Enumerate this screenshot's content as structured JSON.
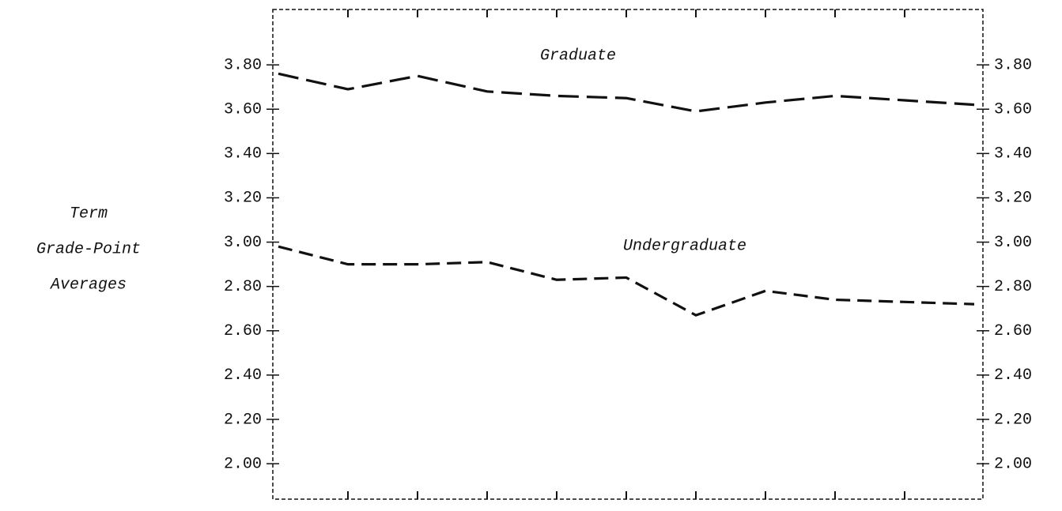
{
  "chart_data": {
    "type": "line",
    "ylabel": [
      "Term",
      "Grade-Point",
      "Averages"
    ],
    "categories": [
      null,
      null,
      null,
      null,
      null,
      null,
      null,
      null,
      null,
      null,
      null
    ],
    "series": [
      {
        "name": "Graduate",
        "color": "#111111",
        "values": [
          3.76,
          3.69,
          3.75,
          3.68,
          3.66,
          3.65,
          3.59,
          3.63,
          3.66,
          3.64,
          3.62
        ]
      },
      {
        "name": "Undergraduate",
        "color": "#111111",
        "values": [
          2.98,
          2.9,
          2.9,
          2.91,
          2.83,
          2.84,
          2.67,
          2.78,
          2.74,
          2.73,
          2.72
        ]
      }
    ],
    "ylim": [
      1.84,
      4.05
    ],
    "yticks": [
      {
        "value": 2,
        "label": "2.00"
      },
      {
        "value": 2.2,
        "label": "2.20"
      },
      {
        "value": 2.4,
        "label": "2.40"
      },
      {
        "value": 2.6,
        "label": "2.60"
      },
      {
        "value": 2.8,
        "label": "2.80"
      },
      {
        "value": 3,
        "label": "3.00"
      },
      {
        "value": 3.2,
        "label": "3.20"
      },
      {
        "value": 3.4,
        "label": "3.40"
      },
      {
        "value": 3.6,
        "label": "3.60"
      },
      {
        "value": 3.8,
        "label": "3.80"
      }
    ]
  }
}
